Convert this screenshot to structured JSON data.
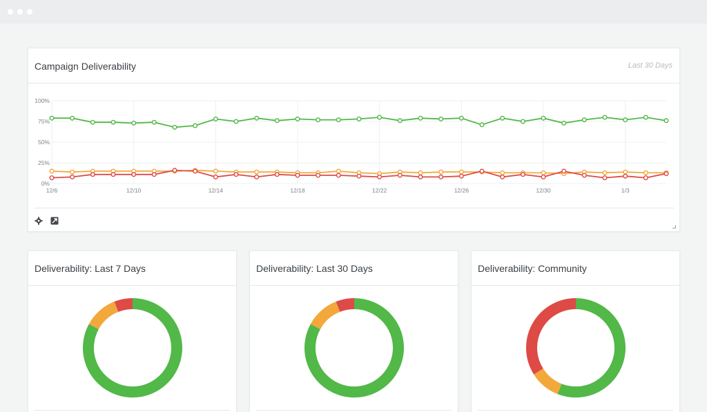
{
  "window": {
    "controls": [
      "dot",
      "dot",
      "dot"
    ]
  },
  "main_panel": {
    "title": "Campaign Deliverability",
    "range_label": "Last 30 Days",
    "tools": {
      "settings_icon": "gear-icon",
      "export_icon": "expand-icon"
    }
  },
  "donut_panels": [
    {
      "title": "Deliverability: Last 7 Days"
    },
    {
      "title": "Deliverability: Last 30 Days"
    },
    {
      "title": "Deliverability: Community"
    }
  ],
  "colors": {
    "green": "#52b848",
    "orange": "#f3a83c",
    "red": "#de4a45",
    "grid": "#eceff1"
  },
  "chart_data": [
    {
      "type": "line",
      "title": "Campaign Deliverability",
      "x": [
        "12/6",
        "12/7",
        "12/8",
        "12/9",
        "12/10",
        "12/11",
        "12/12",
        "12/13",
        "12/14",
        "12/15",
        "12/16",
        "12/17",
        "12/18",
        "12/19",
        "12/20",
        "12/21",
        "12/22",
        "12/23",
        "12/24",
        "12/25",
        "12/26",
        "12/27",
        "12/28",
        "12/29",
        "12/30",
        "12/31",
        "1/1",
        "1/2",
        "1/3",
        "1/4",
        "1/5"
      ],
      "x_tick_labels": [
        "12/6",
        "12/10",
        "12/14",
        "12/18",
        "12/22",
        "12/26",
        "12/30",
        "1/3"
      ],
      "y_tick_labels": [
        "100%",
        "75%",
        "50%",
        "25%",
        "0%"
      ],
      "ylim": [
        0,
        100
      ],
      "grid": true,
      "series": [
        {
          "color": "#52b848",
          "values": [
            79,
            79,
            74,
            74,
            73,
            74,
            68,
            70,
            78,
            75,
            79,
            76,
            78,
            77,
            77,
            78,
            80,
            76,
            79,
            78,
            79,
            71,
            79,
            75,
            79,
            73,
            77,
            80,
            77,
            80,
            76
          ]
        },
        {
          "color": "#f3a83c",
          "values": [
            15,
            14,
            15,
            15,
            15,
            15,
            15,
            16,
            15,
            14,
            14,
            14,
            13,
            13,
            15,
            13,
            12,
            14,
            13,
            14,
            14,
            14,
            13,
            13,
            13,
            12,
            14,
            13,
            14,
            13,
            13
          ]
        },
        {
          "color": "#de4a45",
          "values": [
            7,
            8,
            11,
            11,
            11,
            11,
            16,
            15,
            8,
            11,
            8,
            11,
            10,
            10,
            10,
            9,
            8,
            10,
            8,
            8,
            9,
            15,
            8,
            11,
            8,
            15,
            10,
            7,
            9,
            7,
            12
          ]
        }
      ]
    },
    {
      "type": "pie",
      "title": "Deliverability: Last 7 Days",
      "labels": [
        "green",
        "orange",
        "red"
      ],
      "values": [
        83,
        11,
        6
      ],
      "colors": [
        "#52b848",
        "#f3a83c",
        "#de4a45"
      ]
    },
    {
      "type": "pie",
      "title": "Deliverability: Last 30 Days",
      "labels": [
        "green",
        "orange",
        "red"
      ],
      "values": [
        83,
        11,
        6
      ],
      "colors": [
        "#52b848",
        "#f3a83c",
        "#de4a45"
      ]
    },
    {
      "type": "pie",
      "title": "Deliverability: Community",
      "labels": [
        "green",
        "orange",
        "red"
      ],
      "values": [
        56,
        10,
        34
      ],
      "colors": [
        "#52b848",
        "#f3a83c",
        "#de4a45"
      ]
    }
  ]
}
